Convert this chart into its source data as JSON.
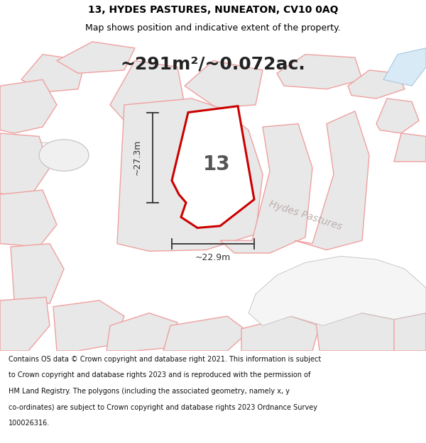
{
  "title_line1": "13, HYDES PASTURES, NUNEATON, CV10 0AQ",
  "title_line2": "Map shows position and indicative extent of the property.",
  "area_text": "~291m²/~0.072ac.",
  "property_number": "13",
  "dim_height": "~27.3m",
  "dim_width": "~22.9m",
  "street_label": "Hydes Pastures",
  "footer_lines": [
    "Contains OS data © Crown copyright and database right 2021. This information is subject",
    "to Crown copyright and database rights 2023 and is reproduced with the permission of",
    "HM Land Registry. The polygons (including the associated geometry, namely x, y",
    "co-ordinates) are subject to Crown copyright and database rights 2023 Ordnance Survey",
    "100026316."
  ],
  "bg_color": "#ffffff",
  "map_bg": "#ffffff",
  "parcel_edge_color": "#f0a0a0",
  "parcel_fill": "#e8e8e8",
  "highlight_color": "#cc0000",
  "dim_color": "#333333",
  "street_label_color": "#b8a8a8",
  "area_text_color": "#222222",
  "title_fontsize": 10,
  "subtitle_fontsize": 9,
  "area_fontsize": 18,
  "dim_fontsize": 9,
  "number_fontsize": 20,
  "footer_fontsize": 7
}
